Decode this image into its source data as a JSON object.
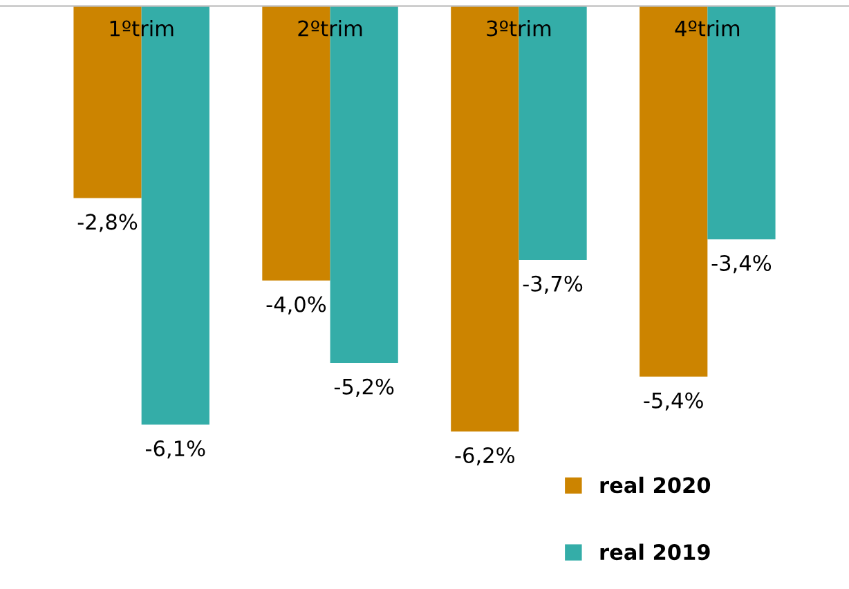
{
  "chart_data": {
    "type": "bar",
    "categories": [
      "1ºtrim",
      "2ºtrim",
      "3ºtrim",
      "4ºtrim"
    ],
    "series": [
      {
        "name": "real 2020",
        "color": "#cc8400",
        "values": [
          -2.8,
          -4.0,
          -6.2,
          -5.4
        ],
        "value_labels": [
          "-2,8%",
          "-4,0%",
          "-6,2%",
          "-5,4%"
        ]
      },
      {
        "name": "real 2019",
        "color": "#34ada8",
        "values": [
          -6.1,
          -5.2,
          -3.7,
          -3.4
        ],
        "value_labels": [
          "-6,1%",
          "-5,2%",
          "-3,7%",
          "-3,4%"
        ]
      }
    ],
    "legend": "bottom right",
    "grid": false
  }
}
